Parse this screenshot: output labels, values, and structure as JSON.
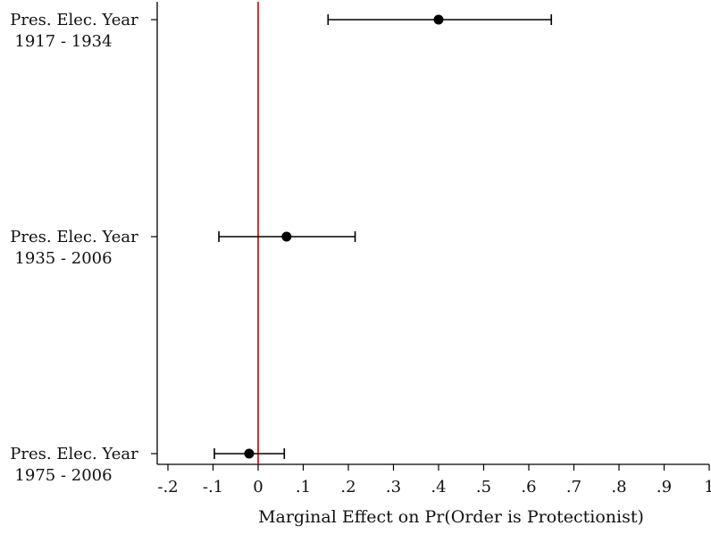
{
  "chart_data": {
    "type": "scatter",
    "subtype": "coefficient-plot-with-error-bars",
    "xlabel": "Marginal Effect on Pr(Order is Protectionist)",
    "xlim": [
      -0.225,
      1.0
    ],
    "x_ticks": [
      -0.2,
      -0.1,
      0,
      0.1,
      0.2,
      0.3,
      0.4,
      0.5,
      0.6,
      0.7,
      0.8,
      0.9,
      1.0
    ],
    "x_tick_labels": [
      "-.2",
      "-.1",
      "0",
      ".1",
      ".2",
      ".3",
      ".4",
      ".5",
      ".6",
      ".7",
      ".8",
      ".9",
      "1"
    ],
    "reference_line": {
      "x": 0,
      "color": "#cc0000"
    },
    "grid": false,
    "categories": [
      {
        "label_line1": "Pres. Elec. Year",
        "label_line2": "1917 - 1934",
        "estimate": 0.4,
        "ci_low": 0.155,
        "ci_high": 0.65
      },
      {
        "label_line1": "Pres. Elec. Year",
        "label_line2": "1935 - 2006",
        "estimate": 0.063,
        "ci_low": -0.087,
        "ci_high": 0.215
      },
      {
        "label_line1": "Pres. Elec. Year",
        "label_line2": "1975 - 2006",
        "estimate": -0.02,
        "ci_low": -0.097,
        "ci_high": 0.058
      }
    ],
    "colors": {
      "marker": "#000000",
      "error_bar": "#000000",
      "axis": "#000000"
    }
  }
}
